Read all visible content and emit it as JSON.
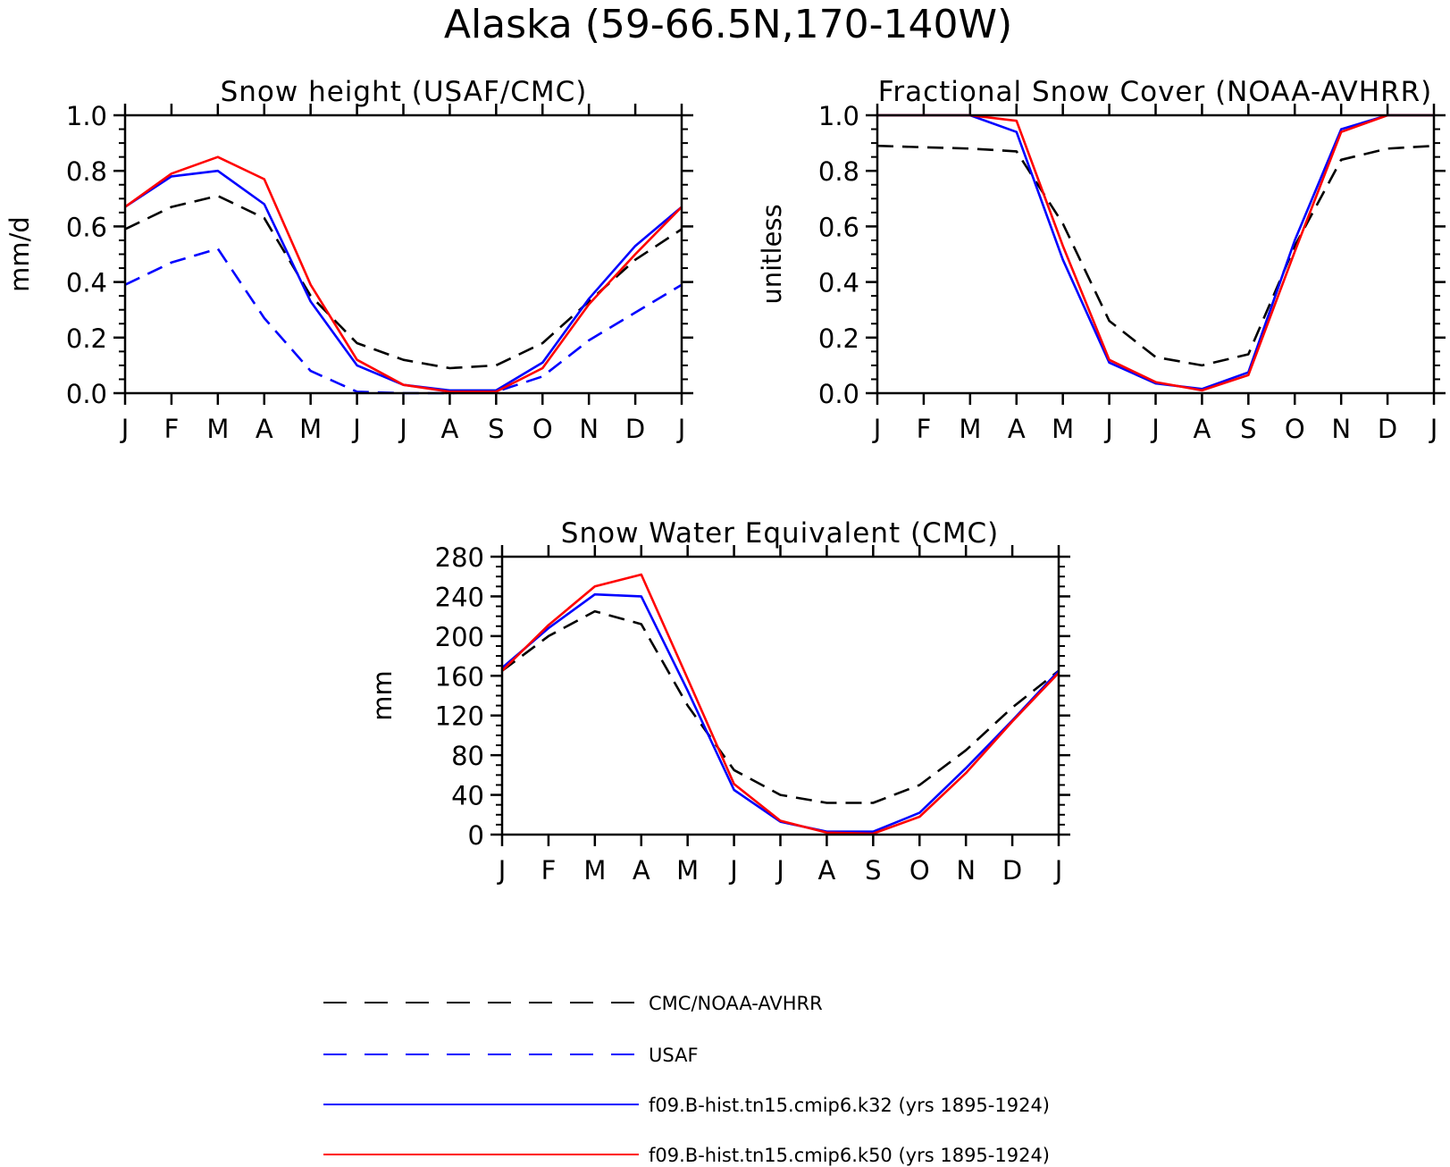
{
  "figure_title": "Alaska (59-66.5N,170-140W)",
  "chart_data": [
    {
      "type": "line",
      "title": "Snow height (USAF/CMC)",
      "xlabel": "",
      "ylabel": "mm/d",
      "x": [
        "J",
        "F",
        "M",
        "A",
        "M",
        "J",
        "J",
        "A",
        "S",
        "O",
        "N",
        "D",
        "J"
      ],
      "ylim": [
        0,
        1.0
      ],
      "yticks": [
        "0.0",
        "0.2",
        "0.4",
        "0.6",
        "0.8",
        "1.0"
      ],
      "series": [
        {
          "name": "CMC/NOAA-AVHRR",
          "color": "#000000",
          "dash": true,
          "values": [
            0.59,
            0.67,
            0.71,
            0.63,
            0.35,
            0.18,
            0.12,
            0.09,
            0.1,
            0.18,
            0.33,
            0.48,
            0.59
          ]
        },
        {
          "name": "USAF",
          "color": "#0000ff",
          "dash": true,
          "values": [
            0.39,
            0.47,
            0.52,
            0.27,
            0.08,
            0.005,
            0.0,
            0.0,
            0.005,
            0.06,
            0.19,
            0.29,
            0.39
          ]
        },
        {
          "name": "f09.B-hist.tn15.cmip6.k32 (yrs 1895-1924)",
          "color": "#0000ff",
          "dash": false,
          "values": [
            0.67,
            0.78,
            0.8,
            0.68,
            0.33,
            0.1,
            0.03,
            0.01,
            0.01,
            0.11,
            0.34,
            0.53,
            0.67
          ]
        },
        {
          "name": "f09.B-hist.tn15.cmip6.k50 (yrs 1895-1924)",
          "color": "#ff0000",
          "dash": false,
          "values": [
            0.67,
            0.79,
            0.85,
            0.77,
            0.39,
            0.12,
            0.03,
            0.005,
            0.005,
            0.09,
            0.32,
            0.5,
            0.67
          ]
        }
      ]
    },
    {
      "type": "line",
      "title": "Fractional Snow Cover (NOAA-AVHRR)",
      "xlabel": "",
      "ylabel": "unitless",
      "x": [
        "J",
        "F",
        "M",
        "A",
        "M",
        "J",
        "J",
        "A",
        "S",
        "O",
        "N",
        "D",
        "J"
      ],
      "ylim": [
        0,
        1.0
      ],
      "yticks": [
        "0.0",
        "0.2",
        "0.4",
        "0.6",
        "0.8",
        "1.0"
      ],
      "series": [
        {
          "name": "CMC/NOAA-AVHRR",
          "color": "#000000",
          "dash": true,
          "values": [
            0.89,
            0.885,
            0.88,
            0.87,
            0.61,
            0.26,
            0.13,
            0.1,
            0.14,
            0.53,
            0.84,
            0.88,
            0.89
          ]
        },
        {
          "name": "f09.B-hist.tn15.cmip6.k32 (yrs 1895-1924)",
          "color": "#0000ff",
          "dash": false,
          "values": [
            1.0,
            1.0,
            1.0,
            0.94,
            0.48,
            0.11,
            0.035,
            0.015,
            0.075,
            0.55,
            0.95,
            1.0,
            1.0
          ]
        },
        {
          "name": "f09.B-hist.tn15.cmip6.k50 (yrs 1895-1924)",
          "color": "#ff0000",
          "dash": false,
          "values": [
            1.0,
            1.0,
            1.0,
            0.98,
            0.53,
            0.12,
            0.04,
            0.01,
            0.065,
            0.51,
            0.94,
            1.0,
            1.0
          ]
        }
      ]
    },
    {
      "type": "line",
      "title": "Snow Water Equivalent (CMC)",
      "xlabel": "",
      "ylabel": "mm",
      "x": [
        "J",
        "F",
        "M",
        "A",
        "M",
        "J",
        "J",
        "A",
        "S",
        "O",
        "N",
        "D",
        "J"
      ],
      "ylim": [
        0,
        280
      ],
      "yticks": [
        "0",
        "40",
        "80",
        "120",
        "160",
        "200",
        "240",
        "280"
      ],
      "series": [
        {
          "name": "CMC/NOAA-AVHRR",
          "color": "#000000",
          "dash": true,
          "values": [
            165,
            200,
            225,
            212,
            130,
            65,
            40,
            32,
            32,
            50,
            85,
            128,
            165
          ]
        },
        {
          "name": "f09.B-hist.tn15.cmip6.k32 (yrs 1895-1924)",
          "color": "#0000ff",
          "dash": false,
          "values": [
            168,
            208,
            242,
            240,
            145,
            45,
            13,
            3,
            3,
            22,
            67,
            115,
            165
          ]
        },
        {
          "name": "f09.B-hist.tn15.cmip6.k50 (yrs 1895-1924)",
          "color": "#ff0000",
          "dash": false,
          "values": [
            165,
            211,
            250,
            262,
            157,
            51,
            14,
            2,
            1,
            18,
            62,
            114,
            163
          ]
        }
      ]
    }
  ],
  "legend": [
    {
      "label": "CMC/NOAA-AVHRR",
      "color": "#000000",
      "dash": true
    },
    {
      "label": "USAF",
      "color": "#0000ff",
      "dash": true
    },
    {
      "label": "f09.B-hist.tn15.cmip6.k32 (yrs 1895-1924)",
      "color": "#0000ff",
      "dash": false
    },
    {
      "label": "f09.B-hist.tn15.cmip6.k50 (yrs 1895-1924)",
      "color": "#ff0000",
      "dash": false
    }
  ]
}
